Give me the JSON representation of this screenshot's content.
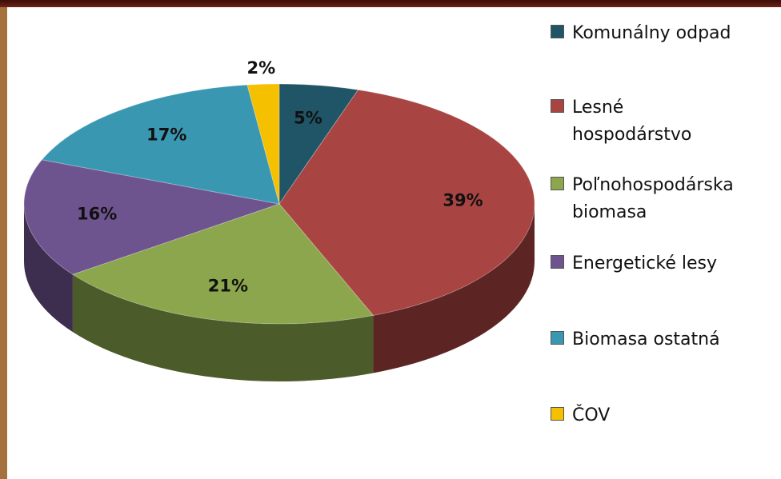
{
  "chart_data": {
    "type": "pie",
    "categories": [
      "Komunálny odpad",
      "Lesné hospodárstvo",
      "Poľnohospodárska biomasa",
      "Energetické lesy",
      "Biomasa ostatná",
      "ČOV"
    ],
    "values": [
      5,
      39,
      21,
      16,
      17,
      2
    ],
    "value_labels": [
      "5%",
      "39%",
      "21%",
      "16%",
      "17%",
      "2%"
    ],
    "colors": [
      "#1f5566",
      "#a84442",
      "#8ba64c",
      "#6e548f",
      "#3a97b2",
      "#f5c000"
    ],
    "three_d": true,
    "legend": "right"
  }
}
